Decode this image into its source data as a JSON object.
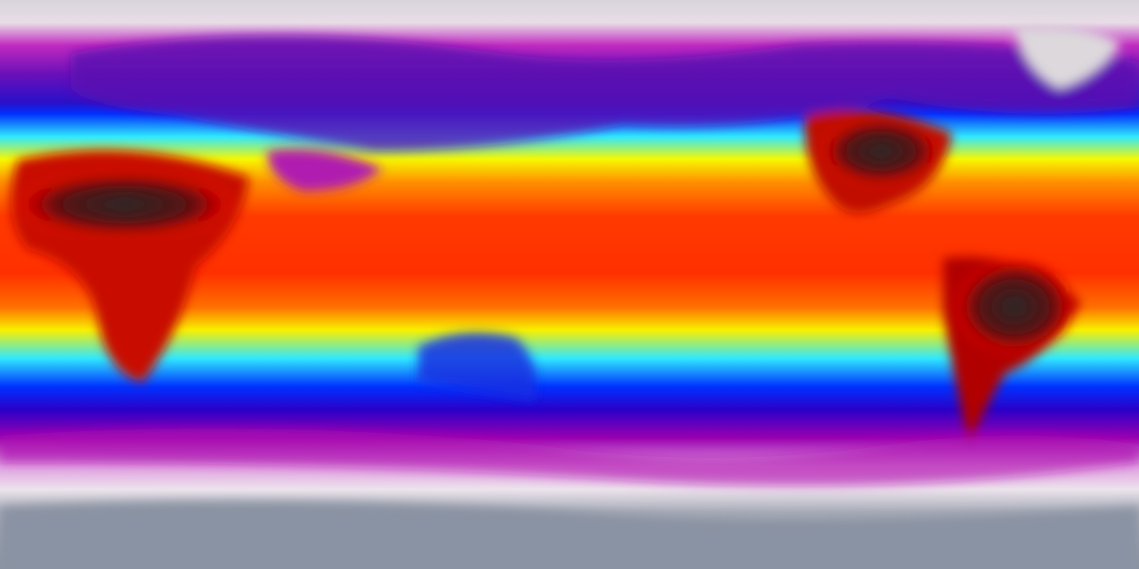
{
  "map": {
    "projection": "equirectangular",
    "colormap": [
      "#8a93a3",
      "#e8dde6",
      "#b00fb0",
      "#1d00d8",
      "#0020ff",
      "#30e8ff",
      "#f8f800",
      "#ff8800",
      "#ff2a00",
      "#b00000",
      "#2a2a2a"
    ],
    "colors": {
      "polar": "#e8dde6",
      "antarctica": "#8a93a3",
      "cold": "#9a00b8",
      "cool": "#1a10e0",
      "mild": "#30e8ff",
      "warm": "#f8f800",
      "hot": "#ff3000",
      "hottest": "#2e2a2a"
    }
  }
}
